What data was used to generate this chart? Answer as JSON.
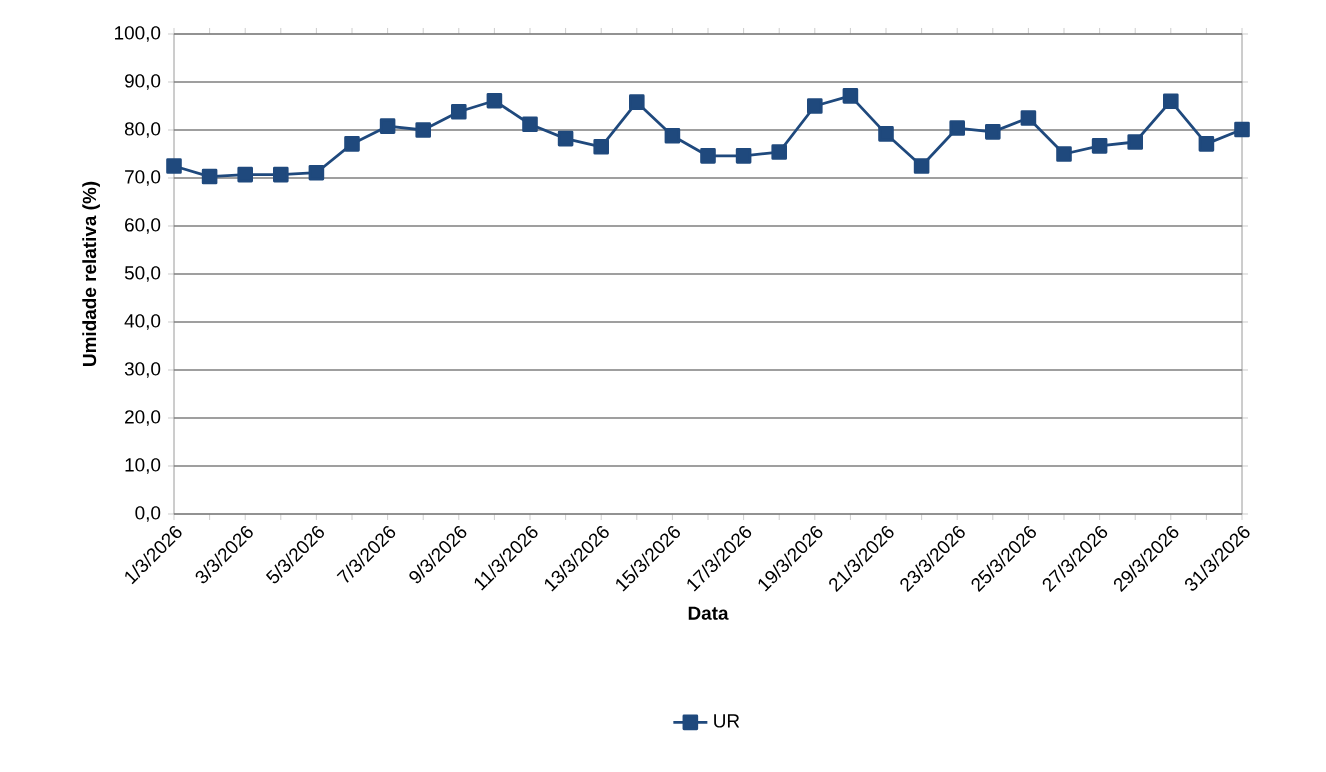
{
  "chart_data": {
    "type": "line",
    "xlabel": "Data",
    "ylabel": "Umidade relativa (%)",
    "categories": [
      "1/3/2026",
      null,
      "3/3/2026",
      null,
      "5/3/2026",
      null,
      "7/3/2026",
      null,
      "9/3/2026",
      null,
      "11/3/2026",
      null,
      "13/3/2026",
      null,
      "15/3/2026",
      null,
      "17/3/2026",
      null,
      "19/3/2026",
      null,
      "21/3/2026",
      null,
      "23/3/2026",
      null,
      "25/3/2026",
      null,
      "27/3/2026",
      null,
      "29/3/2026",
      null,
      "31/3/2026"
    ],
    "series": [
      {
        "name": "UR",
        "color": "#1f497d",
        "values": [
          72.5,
          70.3,
          70.7,
          70.7,
          71.1,
          77.1,
          80.8,
          80.0,
          83.8,
          86.1,
          81.2,
          78.2,
          76.5,
          85.8,
          78.8,
          74.6,
          74.6,
          75.4,
          85.0,
          87.1,
          79.2,
          72.5,
          80.4,
          79.6,
          82.5,
          75.0,
          76.7,
          77.5,
          86.0,
          77.1,
          80.1
        ]
      }
    ],
    "ylim": [
      0,
      100
    ],
    "yticks": [
      {
        "value": 0,
        "label": "0,0"
      },
      {
        "value": 10,
        "label": "10,0"
      },
      {
        "value": 20,
        "label": "20,0"
      },
      {
        "value": 30,
        "label": "30,0"
      },
      {
        "value": 40,
        "label": "40,0"
      },
      {
        "value": 50,
        "label": "50,0"
      },
      {
        "value": 60,
        "label": "60,0"
      },
      {
        "value": 70,
        "label": "70,0"
      },
      {
        "value": 80,
        "label": "80,0"
      },
      {
        "value": 90,
        "label": "90,0"
      },
      {
        "value": 100,
        "label": "100,0"
      }
    ],
    "grid": "y",
    "legend": "bottom",
    "marker": "square",
    "line_style": "solid"
  }
}
